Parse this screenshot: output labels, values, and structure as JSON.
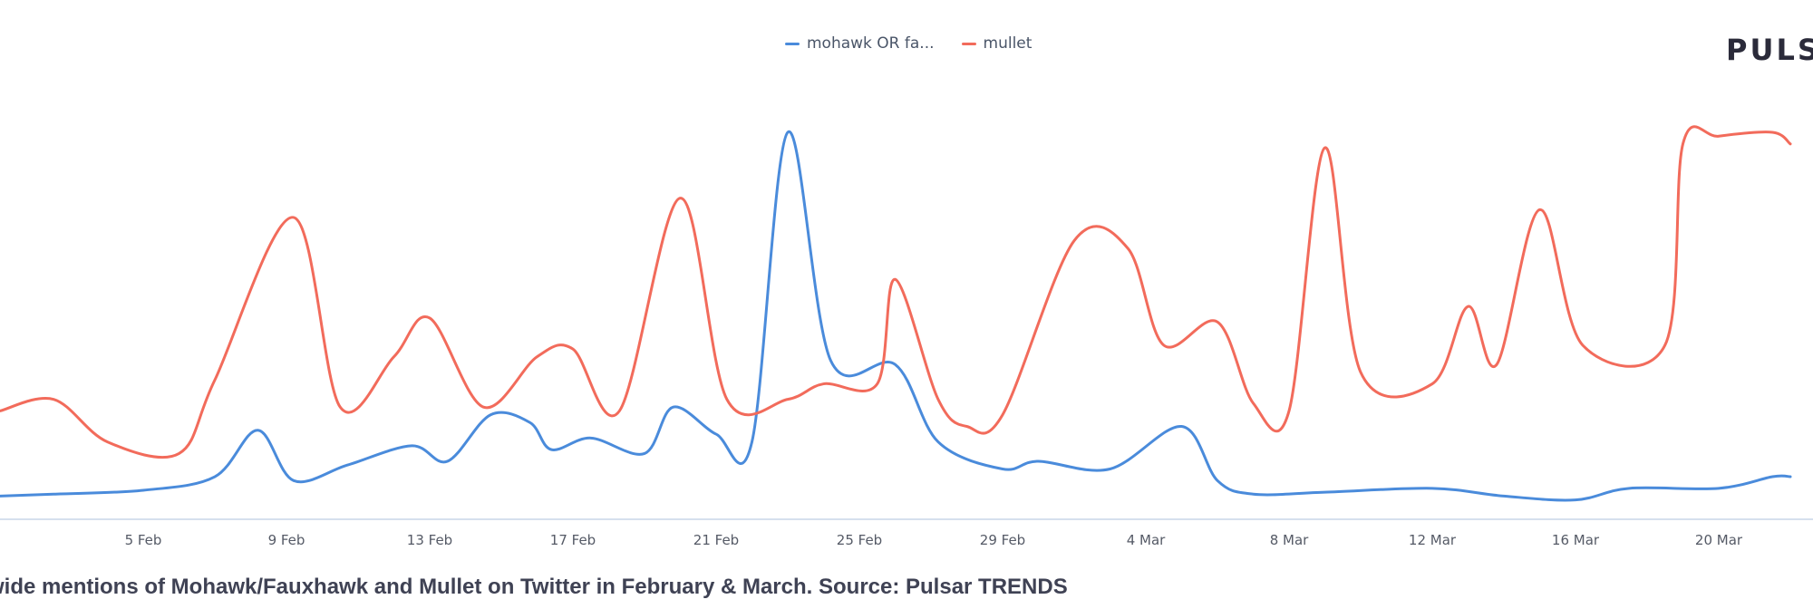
{
  "brand": "PULS",
  "caption": "wide mentions of Mohawk/Fauxhawk and Mullet on Twitter in February & March. Source: Pulsar TRENDS",
  "legend": [
    {
      "label": "mohawk OR fa...",
      "color": "#4a8bdb"
    },
    {
      "label": "mullet",
      "color": "#f26b5b"
    }
  ],
  "chart_data": {
    "type": "line",
    "x_start": "1 Feb",
    "x_end": "23 Mar",
    "x_ticks": [
      "5 Feb",
      "9 Feb",
      "13 Feb",
      "17 Feb",
      "21 Feb",
      "25 Feb",
      "29 Feb",
      "4 Mar",
      "8 Mar",
      "12 Mar",
      "16 Mar",
      "20 Mar"
    ],
    "ylim": [
      0,
      100
    ],
    "grid": false,
    "legend_position": "top-center",
    "series": [
      {
        "name": "mohawk OR fa...",
        "color": "#4a8bdb",
        "points": [
          [
            0,
            6
          ],
          [
            1.5,
            6.5
          ],
          [
            4,
            7.5
          ],
          [
            6,
            11
          ],
          [
            7.2,
            23
          ],
          [
            8.2,
            10
          ],
          [
            9.7,
            14
          ],
          [
            11.5,
            19
          ],
          [
            12.5,
            15
          ],
          [
            13.7,
            27
          ],
          [
            14.8,
            25
          ],
          [
            15.4,
            18
          ],
          [
            16.5,
            21
          ],
          [
            18,
            17
          ],
          [
            18.8,
            29
          ],
          [
            20,
            22
          ],
          [
            21,
            20
          ],
          [
            22,
            100
          ],
          [
            23.2,
            41
          ],
          [
            25,
            40
          ],
          [
            26.2,
            20
          ],
          [
            28,
            13
          ],
          [
            29,
            15
          ],
          [
            31,
            13
          ],
          [
            33,
            24
          ],
          [
            34,
            10
          ],
          [
            35,
            6.5
          ],
          [
            37,
            7
          ],
          [
            40,
            8
          ],
          [
            42,
            6
          ],
          [
            44,
            5
          ],
          [
            45.5,
            8
          ],
          [
            48,
            8
          ],
          [
            49.5,
            11
          ],
          [
            50,
            11
          ]
        ]
      },
      {
        "name": "mullet",
        "color": "#f26b5b",
        "points": [
          [
            0,
            28
          ],
          [
            1.5,
            31
          ],
          [
            3,
            20
          ],
          [
            5,
            17
          ],
          [
            6,
            36
          ],
          [
            8.2,
            78
          ],
          [
            9.5,
            29
          ],
          [
            11,
            42
          ],
          [
            12,
            52
          ],
          [
            13.5,
            29
          ],
          [
            15,
            42
          ],
          [
            16,
            44
          ],
          [
            17.3,
            28
          ],
          [
            19,
            83
          ],
          [
            20.3,
            31
          ],
          [
            22,
            31
          ],
          [
            23,
            35
          ],
          [
            24.5,
            35
          ],
          [
            25,
            62
          ],
          [
            26.2,
            31
          ],
          [
            27,
            24
          ],
          [
            28,
            27
          ],
          [
            30,
            72
          ],
          [
            31.5,
            70
          ],
          [
            32.5,
            45
          ],
          [
            34,
            51
          ],
          [
            35,
            30
          ],
          [
            36,
            28
          ],
          [
            37,
            96
          ],
          [
            38,
            38
          ],
          [
            40,
            35
          ],
          [
            41,
            55
          ],
          [
            41.8,
            40
          ],
          [
            43,
            80
          ],
          [
            44.2,
            45
          ],
          [
            46.5,
            45
          ],
          [
            47,
            97
          ],
          [
            48,
            99
          ],
          [
            49.5,
            100
          ],
          [
            50,
            97
          ]
        ]
      }
    ]
  }
}
